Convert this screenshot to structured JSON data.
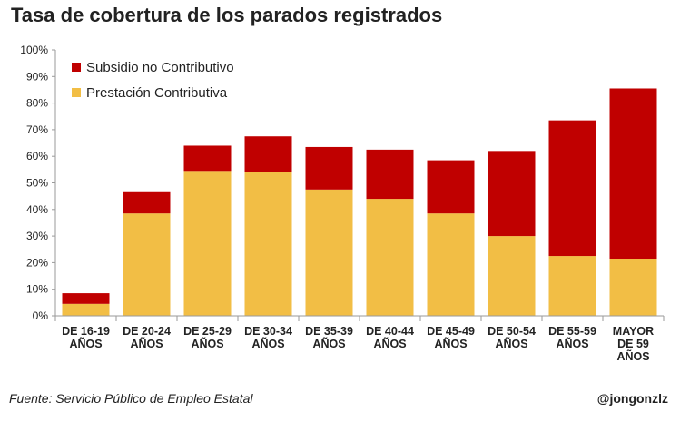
{
  "chart_data": {
    "type": "bar",
    "stacked": true,
    "title": "Tasa de cobertura de los parados registrados",
    "categories": [
      [
        "DE 16-19",
        "AÑOS"
      ],
      [
        "DE 20-24",
        "AÑOS"
      ],
      [
        "DE 25-29",
        "AÑOS"
      ],
      [
        "DE 30-34",
        "AÑOS"
      ],
      [
        "DE 35-39",
        "AÑOS"
      ],
      [
        "DE 40-44",
        "AÑOS"
      ],
      [
        "DE 45-49",
        "AÑOS"
      ],
      [
        "DE 50-54",
        "AÑOS"
      ],
      [
        "DE 55-59",
        "AÑOS"
      ],
      [
        "MAYOR",
        "DE 59",
        "AÑOS"
      ]
    ],
    "series": [
      {
        "name": "Prestación Contributiva",
        "color": "#F2BE45",
        "values": [
          4.5,
          38.5,
          54.5,
          54,
          47.5,
          44,
          38.5,
          30,
          22.5,
          21.5
        ]
      },
      {
        "name": "Subsidio no Contributivo",
        "color": "#C00000",
        "values": [
          4,
          8,
          9.5,
          13.5,
          16,
          18.5,
          20,
          32,
          51,
          64
        ]
      }
    ],
    "ylim": [
      0,
      100
    ],
    "yticks": [
      "0%",
      "10%",
      "20%",
      "30%",
      "40%",
      "50%",
      "60%",
      "70%",
      "80%",
      "90%",
      "100%"
    ],
    "grid": false,
    "legend_position": "top-left"
  },
  "footer": {
    "source": "Fuente: Servicio Público de Empleo Estatal",
    "handle": "@jongonzlz"
  }
}
